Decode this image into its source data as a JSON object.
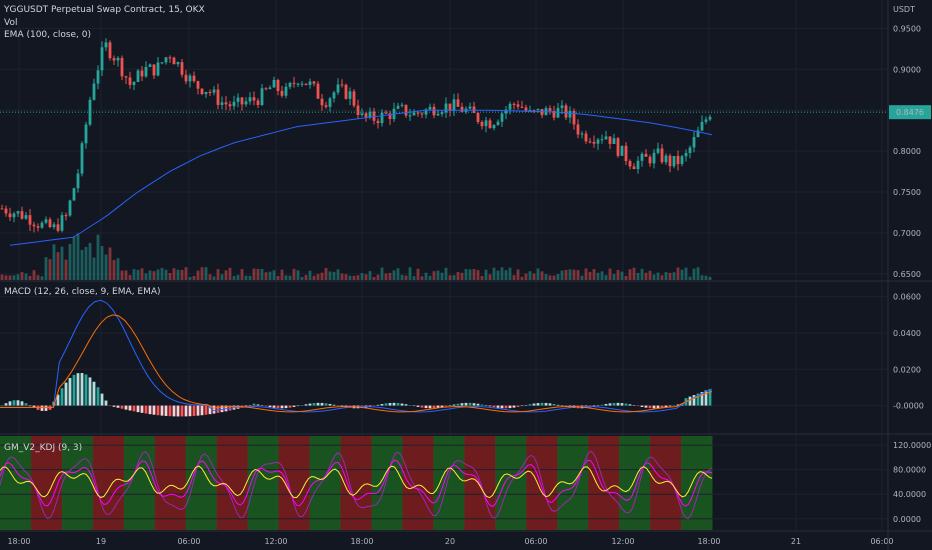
{
  "colors": {
    "background": "#131722",
    "grid": "#1e222d",
    "up": "#26a69a",
    "down": "#ef5350",
    "ema": "#2962ff",
    "macd_line": "#2962ff",
    "signal_line": "#ff6d00",
    "hist_up_strong": "#26a69a",
    "hist_up_weak": "#b2dfdb",
    "hist_down_strong": "#ff5252",
    "hist_down_weak": "#ffcdd2",
    "kdj_k": "#ff00ff",
    "kdj_d": "#ffeb3b",
    "kdj_j": "#9c27b0",
    "kdj_bull": "#1b5e20",
    "kdj_bear": "#7f1d1d",
    "last_price_bg": "#26a69a"
  },
  "header": {
    "symbol_title": "YGGUSDT Perpetual Swap Contract, 15, OKX",
    "vol_label": "Vol",
    "ema_label": "EMA (100, close, 0)",
    "currency": "USDT"
  },
  "price_pane": {
    "ticks": [
      "0.9500",
      "0.9000",
      "0.8500",
      "0.8000",
      "0.7500",
      "0.7000",
      "0.6500"
    ],
    "last_price": "0.8476"
  },
  "macd_pane": {
    "label": "MACD (12, 26, close, 9, EMA, EMA)",
    "ticks": [
      "0.0600",
      "0.0400",
      "0.0200",
      "-0.0000"
    ]
  },
  "kdj_pane": {
    "label": "GM_V2_KDJ (9, 3)",
    "ticks": [
      "120.0000",
      "80.0000",
      "40.0000",
      "0.0000"
    ]
  },
  "time_axis": {
    "labels": [
      "18:00",
      "19",
      "06:00",
      "12:00",
      "18:00",
      "20",
      "06:00",
      "12:00",
      "18:00",
      "21",
      "06:00"
    ]
  },
  "chart_data": {
    "type": "candlestick",
    "title": "YGGUSDT Perpetual Swap Contract, 15, OKX",
    "ylim": [
      0.65,
      0.97
    ],
    "interval": "15",
    "last_price": 0.8476,
    "price_anchors": [
      0.73,
      0.725,
      0.72,
      0.71,
      0.705,
      0.72,
      0.78,
      0.88,
      0.93,
      0.91,
      0.88,
      0.9,
      0.9,
      0.92,
      0.9,
      0.88,
      0.875,
      0.86,
      0.855,
      0.86,
      0.865,
      0.88,
      0.87,
      0.89,
      0.88,
      0.86,
      0.875,
      0.87,
      0.84,
      0.84,
      0.845,
      0.85,
      0.845,
      0.85,
      0.855,
      0.855,
      0.85,
      0.84,
      0.835,
      0.85,
      0.86,
      0.845,
      0.848,
      0.85,
      0.845,
      0.82,
      0.818,
      0.82,
      0.8,
      0.785,
      0.79,
      0.795,
      0.785,
      0.79,
      0.82,
      0.848
    ],
    "ema_anchors": [
      0.685,
      0.69,
      0.695,
      0.72,
      0.75,
      0.775,
      0.795,
      0.81,
      0.82,
      0.83,
      0.835,
      0.84,
      0.845,
      0.85,
      0.85,
      0.85,
      0.849,
      0.848,
      0.845,
      0.84,
      0.835,
      0.828,
      0.82
    ],
    "kdj_band_pattern": [
      1,
      0,
      1,
      0,
      1,
      0,
      1,
      0,
      1,
      0,
      1,
      0,
      1,
      0,
      1,
      0,
      1,
      0,
      1,
      0,
      1,
      0,
      1
    ]
  }
}
